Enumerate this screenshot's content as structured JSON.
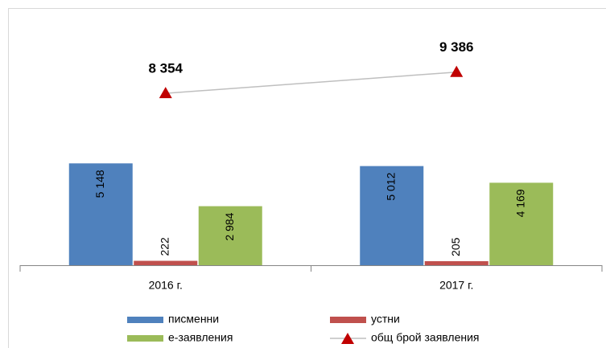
{
  "chart_data": {
    "type": "bar",
    "categories": [
      "2016 г.",
      "2017 г."
    ],
    "series": [
      {
        "name": "писменни",
        "color": "#4f81bd",
        "values": [
          5148,
          5012
        ],
        "value_labels": [
          "5 148",
          "5 012"
        ]
      },
      {
        "name": "устни",
        "color": "#c0504d",
        "values": [
          222,
          205
        ],
        "value_labels": [
          "222",
          "205"
        ]
      },
      {
        "name": "е-заявления",
        "color": "#9bbb59",
        "values": [
          2984,
          4169
        ],
        "value_labels": [
          "2 984",
          "4 169"
        ]
      },
      {
        "name": "общ брой заявления",
        "type": "line",
        "axis": "y2",
        "color": "#c00000",
        "line_color": "#bfbfbf",
        "values": [
          8354,
          9386
        ],
        "value_labels": [
          "8 354",
          "9 386"
        ]
      }
    ],
    "ylim": [
      0,
      13000
    ],
    "y2lim": [
      0,
      12500
    ]
  }
}
